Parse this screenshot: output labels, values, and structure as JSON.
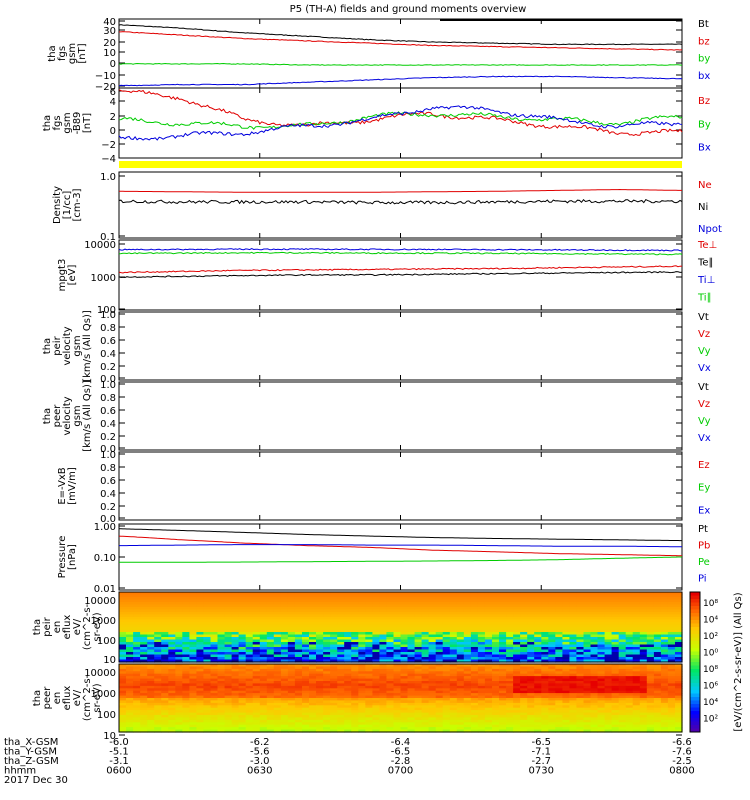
{
  "title": "P5 (TH-A) fields and ground moments overview",
  "colors": {
    "black": "#000000",
    "red": "#e00000",
    "green": "#00cc00",
    "blue": "#0000dd",
    "yellow": "#ffff00"
  },
  "chart_data": [
    {
      "type": "line",
      "panel": "fgs_gsm",
      "ylabel": [
        "tha",
        "fgs",
        "gsm",
        "[nT]"
      ],
      "ylim": [
        -20,
        40
      ],
      "yticks": [
        "40",
        "30",
        "20",
        "10",
        "0",
        "−10",
        "−20"
      ],
      "series": [
        {
          "name": "Bt",
          "color": "black",
          "values": [
            35,
            32,
            28,
            25,
            22,
            20,
            19,
            18,
            18,
            18
          ]
        },
        {
          "name": "bz",
          "color": "red",
          "values": [
            29,
            26,
            23,
            21,
            19,
            17,
            16,
            15,
            14,
            13
          ]
        },
        {
          "name": "by",
          "color": "green",
          "values": [
            1,
            1,
            1,
            0,
            0,
            0,
            0,
            0,
            0,
            0
          ]
        },
        {
          "name": "bx",
          "color": "blue",
          "values": [
            -18,
            -17,
            -17,
            -15,
            -13,
            -11,
            -10,
            -10,
            -11,
            -12
          ]
        }
      ]
    },
    {
      "type": "line",
      "panel": "fgs_gsm_detrend",
      "ylabel": [
        "tha",
        "fgs",
        "gsm",
        "-B89",
        "[nT]"
      ],
      "ylim": [
        -5,
        6
      ],
      "yticks": [
        "6",
        "4",
        "2",
        "0",
        "−2",
        "−4"
      ],
      "series": [
        {
          "name": "Bz",
          "color": "red",
          "values": [
            5.5,
            4.5,
            1,
            0,
            1,
            2,
            1,
            0,
            -1,
            -1
          ]
        },
        {
          "name": "By",
          "color": "green",
          "values": [
            1,
            0.5,
            0,
            0,
            1.5,
            2,
            1.5,
            1,
            0.5,
            1.5
          ]
        },
        {
          "name": "Bx",
          "color": "blue",
          "values": [
            -2,
            -1.5,
            -1,
            0,
            1,
            3,
            2.5,
            1,
            0,
            0.5
          ]
        }
      ]
    },
    {
      "type": "line",
      "panel": "density",
      "ylabel": [
        "Density",
        "[1/cc]",
        "[cm-3]"
      ],
      "ylim": [
        0.1,
        1.2
      ],
      "log": true,
      "yticks": [
        "1.0",
        "0.1"
      ],
      "series": [
        {
          "name": "Ne",
          "color": "red",
          "values": [
            0.58,
            0.57,
            0.56,
            0.56,
            0.56,
            0.57,
            0.58,
            0.6,
            0.62,
            0.6
          ]
        },
        {
          "name": "Ni",
          "color": "black",
          "values": [
            0.4,
            0.39,
            0.39,
            0.39,
            0.38,
            0.38,
            0.39,
            0.4,
            0.4,
            0.4
          ]
        },
        {
          "name": "Npot",
          "color": "blue",
          "values": []
        }
      ]
    },
    {
      "type": "line",
      "panel": "temperature",
      "ylabel": [
        "mpgt3",
        "[eV]"
      ],
      "ylim": [
        100,
        12000
      ],
      "log": true,
      "yticks": [
        "10000",
        "1000",
        "100"
      ],
      "series": [
        {
          "name": "Te⊥",
          "color": "red",
          "values": [
            1300,
            1400,
            1500,
            1550,
            1600,
            1650,
            1700,
            1800,
            1900,
            2000
          ]
        },
        {
          "name": "Te∥",
          "color": "black",
          "values": [
            950,
            1000,
            1050,
            1100,
            1100,
            1150,
            1200,
            1250,
            1300,
            1350
          ]
        },
        {
          "name": "Ti⊥",
          "color": "blue",
          "values": [
            6200,
            6300,
            6400,
            6400,
            6300,
            6300,
            6200,
            6100,
            6000,
            5900
          ]
        },
        {
          "name": "Ti∥",
          "color": "green",
          "values": [
            4800,
            4900,
            5000,
            5000,
            4900,
            4900,
            4800,
            4700,
            4600,
            4500
          ]
        }
      ]
    },
    {
      "type": "line",
      "panel": "peir_velocity",
      "ylabel": [
        "tha",
        "peir",
        "velocity",
        "gsm",
        "[km/s (All Qs)]"
      ],
      "ylim": [
        0,
        1
      ],
      "yticks": [
        "1.0",
        "0.8",
        "0.6",
        "0.4",
        "0.2",
        "0.0"
      ],
      "series": [
        {
          "name": "Vt",
          "color": "black",
          "values": []
        },
        {
          "name": "Vz",
          "color": "red",
          "values": []
        },
        {
          "name": "Vy",
          "color": "green",
          "values": []
        },
        {
          "name": "Vx",
          "color": "blue",
          "values": []
        }
      ]
    },
    {
      "type": "line",
      "panel": "peer_velocity",
      "ylabel": [
        "tha",
        "peer",
        "velocity",
        "gsm",
        "[km/s (All Qs)]"
      ],
      "ylim": [
        0,
        1
      ],
      "yticks": [
        "1.0",
        "0.8",
        "0.6",
        "0.4",
        "0.2",
        "0.0"
      ],
      "series": [
        {
          "name": "Vt",
          "color": "black",
          "values": []
        },
        {
          "name": "Vz",
          "color": "red",
          "values": []
        },
        {
          "name": "Vy",
          "color": "green",
          "values": []
        },
        {
          "name": "Vx",
          "color": "blue",
          "values": []
        }
      ]
    },
    {
      "type": "line",
      "panel": "efield",
      "ylabel": [
        "E=-VxB",
        "[mV/m]"
      ],
      "ylim": [
        0,
        1
      ],
      "yticks": [
        "1.0",
        "0.8",
        "0.6",
        "0.4",
        "0.2",
        "0.0"
      ],
      "series": [
        {
          "name": "Ez",
          "color": "red",
          "values": []
        },
        {
          "name": "Ey",
          "color": "green",
          "values": []
        },
        {
          "name": "Ex",
          "color": "blue",
          "values": []
        }
      ]
    },
    {
      "type": "line",
      "panel": "pressure",
      "ylabel": [
        "Pressure",
        "[nPa]"
      ],
      "ylim": [
        0.01,
        1.2
      ],
      "log": true,
      "yticks": [
        "1.00",
        "0.10",
        "0.01"
      ],
      "series": [
        {
          "name": "Pt",
          "color": "black",
          "values": [
            0.85,
            0.75,
            0.65,
            0.56,
            0.5,
            0.45,
            0.42,
            0.4,
            0.38,
            0.36
          ]
        },
        {
          "name": "Pb",
          "color": "red",
          "values": [
            0.5,
            0.38,
            0.3,
            0.25,
            0.22,
            0.18,
            0.16,
            0.14,
            0.13,
            0.12
          ]
        },
        {
          "name": "Pe",
          "color": "green",
          "values": [
            0.075,
            0.075,
            0.076,
            0.078,
            0.08,
            0.082,
            0.085,
            0.09,
            0.1,
            0.11
          ]
        },
        {
          "name": "Pi",
          "color": "blue",
          "values": [
            0.25,
            0.26,
            0.27,
            0.27,
            0.26,
            0.26,
            0.25,
            0.24,
            0.24,
            0.23
          ]
        }
      ]
    },
    {
      "type": "heatmap",
      "panel": "peir_eflux",
      "ylabel": [
        "tha",
        "peir",
        "en",
        "eflux",
        "eV/",
        "(cm^2-s-",
        "sr-eV)"
      ],
      "ylim": [
        5,
        20000
      ],
      "log": true,
      "yticks": [
        "10000",
        "1000",
        "100",
        "10"
      ]
    },
    {
      "type": "heatmap",
      "panel": "peer_eflux",
      "ylabel": [
        "tha",
        "peer",
        "en",
        "eflux",
        "eV/",
        "(cm^2-s-",
        "sr-eV)"
      ],
      "ylim": [
        5,
        20000
      ],
      "log": true,
      "yticks": [
        "10000",
        "1000",
        "100",
        "10"
      ]
    }
  ],
  "colorbar": {
    "label": "[eV/(cm^2-s-sr-eV)] (All Qs)",
    "ticks": [
      "10⁸",
      "10⁴",
      "10²",
      "10⁰",
      "10⁸",
      "10⁶",
      "10⁴",
      "10²"
    ]
  },
  "x_axis": {
    "rows": [
      {
        "name": "tha_X-GSM",
        "values": [
          "-6.0",
          "-6.2",
          "-6.4",
          "-6.5",
          "-6.6"
        ]
      },
      {
        "name": "tha_Y-GSM",
        "values": [
          "-5.1",
          "-5.6",
          "-6.5",
          "-7.1",
          "-7.6"
        ]
      },
      {
        "name": "tha_Z-GSM",
        "values": [
          "-3.1",
          "-3.0",
          "-2.8",
          "-2.7",
          "-2.5"
        ]
      },
      {
        "name": "hhmm",
        "values": [
          "0600",
          "0630",
          "0700",
          "0730",
          "0800"
        ]
      }
    ],
    "date": "2017 Dec 30"
  }
}
